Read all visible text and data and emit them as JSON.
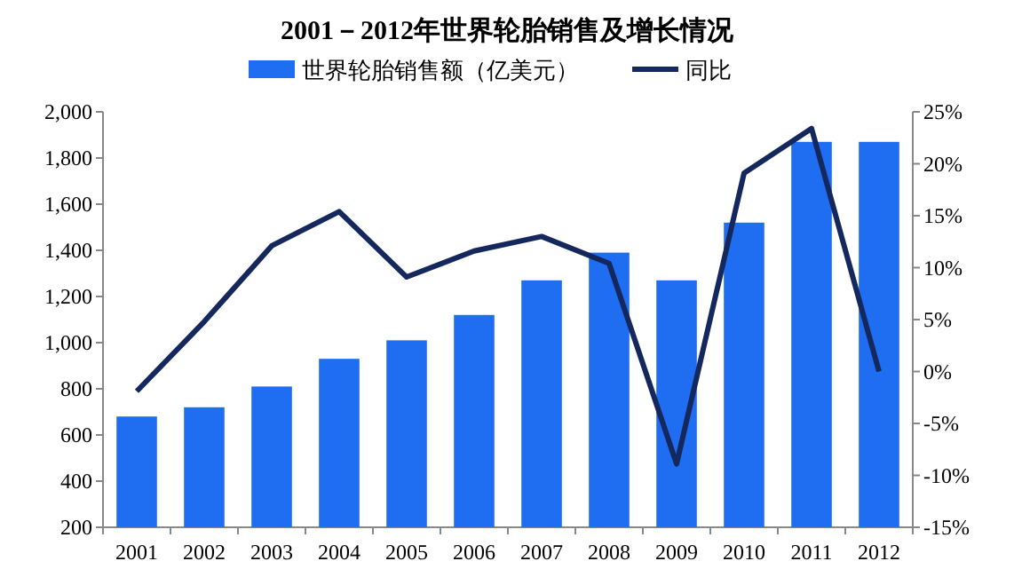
{
  "chart_data": {
    "type": "bar",
    "title": "2001－2012年世界轮胎销售及增长情况",
    "categories": [
      "2001",
      "2002",
      "2003",
      "2004",
      "2005",
      "2006",
      "2007",
      "2008",
      "2009",
      "2010",
      "2011",
      "2012"
    ],
    "series": [
      {
        "name": "世界轮胎销售额（亿美元）",
        "color": "#1f6ef2",
        "values": [
          680,
          720,
          810,
          930,
          1010,
          1120,
          1270,
          1390,
          1270,
          1520,
          1870,
          1870
        ]
      },
      {
        "name": "同比",
        "type": "line",
        "axis": "y2",
        "color": "#14285e",
        "values": [
          -1.9,
          4.8,
          12.1,
          15.4,
          9.1,
          11.6,
          13.0,
          10.4,
          -8.9,
          19.1,
          23.4,
          0
        ]
      }
    ],
    "ylim": [
      200,
      2000
    ],
    "yticks": [
      {
        "value": 200,
        "label": "200"
      },
      {
        "value": 400,
        "label": "400"
      },
      {
        "value": 600,
        "label": "600"
      },
      {
        "value": 800,
        "label": "800"
      },
      {
        "value": 1000,
        "label": "1,000"
      },
      {
        "value": 1200,
        "label": "1,200"
      },
      {
        "value": 1400,
        "label": "1,400"
      },
      {
        "value": 1600,
        "label": "1,600"
      },
      {
        "value": 1800,
        "label": "1,800"
      },
      {
        "value": 2000,
        "label": "2,000"
      }
    ],
    "y2lim": [
      -15,
      25
    ],
    "y2ticks": [
      {
        "value": -15,
        "label": "-15%"
      },
      {
        "value": -10,
        "label": "-10%"
      },
      {
        "value": -5,
        "label": "-5%"
      },
      {
        "value": 0,
        "label": "0%"
      },
      {
        "value": 5,
        "label": "5%"
      },
      {
        "value": 10,
        "label": "10%"
      },
      {
        "value": 15,
        "label": "15%"
      },
      {
        "value": 20,
        "label": "20%"
      },
      {
        "value": 25,
        "label": "25%"
      }
    ],
    "legend": "top",
    "marker": "none",
    "line_style": "solid"
  }
}
